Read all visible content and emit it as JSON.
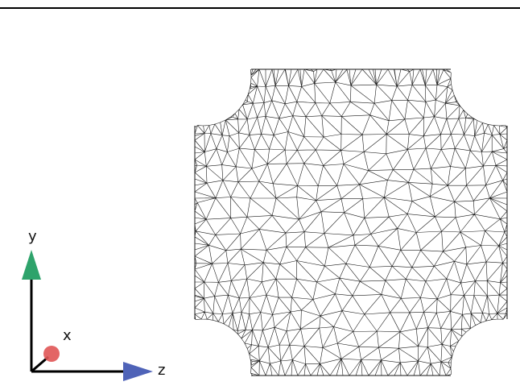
{
  "viewer": {
    "colors": {
      "background": "#ffffff",
      "mesh_edges": "#1a1a1a",
      "top_rule": "#000000",
      "axis_y": "#2ea36b",
      "axis_x": "#e05555",
      "axis_z": "#4f63b8"
    }
  },
  "axes": {
    "y_label": "y",
    "x_label": "x",
    "z_label": "z"
  }
}
